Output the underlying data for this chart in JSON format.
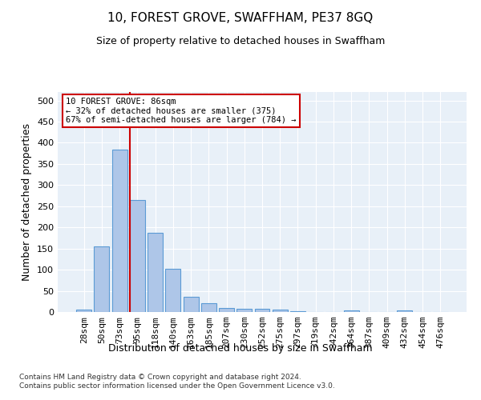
{
  "title": "10, FOREST GROVE, SWAFFHAM, PE37 8GQ",
  "subtitle": "Size of property relative to detached houses in Swaffham",
  "xlabel": "Distribution of detached houses by size in Swaffham",
  "ylabel": "Number of detached properties",
  "categories": [
    "28sqm",
    "50sqm",
    "73sqm",
    "95sqm",
    "118sqm",
    "140sqm",
    "163sqm",
    "185sqm",
    "207sqm",
    "230sqm",
    "252sqm",
    "275sqm",
    "297sqm",
    "319sqm",
    "342sqm",
    "364sqm",
    "387sqm",
    "409sqm",
    "432sqm",
    "454sqm",
    "476sqm"
  ],
  "values": [
    5,
    155,
    383,
    265,
    188,
    103,
    35,
    20,
    10,
    8,
    8,
    5,
    2,
    0,
    0,
    4,
    0,
    0,
    4,
    0,
    0
  ],
  "bar_color": "#aec6e8",
  "bar_edge_color": "#5b9bd5",
  "ylim": [
    0,
    520
  ],
  "yticks": [
    0,
    50,
    100,
    150,
    200,
    250,
    300,
    350,
    400,
    450,
    500
  ],
  "red_line_x": 2.57,
  "red_line_color": "#cc0000",
  "annotation_text": "10 FOREST GROVE: 86sqm\n← 32% of detached houses are smaller (375)\n67% of semi-detached houses are larger (784) →",
  "annotation_box_color": "#ffffff",
  "annotation_box_edge_color": "#cc0000",
  "footer_text": "Contains HM Land Registry data © Crown copyright and database right 2024.\nContains public sector information licensed under the Open Government Licence v3.0.",
  "plot_background_color": "#e8f0f8",
  "grid_color": "#ffffff",
  "title_fontsize": 11,
  "subtitle_fontsize": 9,
  "ylabel_fontsize": 9,
  "xlabel_fontsize": 9,
  "tick_fontsize": 8,
  "footer_fontsize": 6.5
}
